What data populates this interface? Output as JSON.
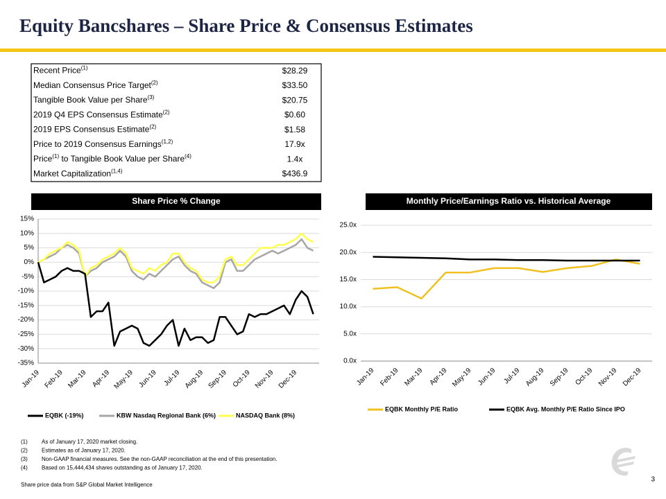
{
  "title": "Equity Bancshares – Share Price & Consensus Estimates",
  "table": {
    "rows": [
      {
        "label": [
          {
            "text": "Recent Price"
          },
          {
            "sup": "(1)"
          }
        ],
        "value": "$28.29"
      },
      {
        "label": [
          {
            "text": "Median Consensus  Price Target"
          },
          {
            "sup": "(2)"
          }
        ],
        "value": "$33.50"
      },
      {
        "label": [
          {
            "text": "Tangible Book Value per Share"
          },
          {
            "sup": "(3)"
          }
        ],
        "value": "$20.75"
      },
      {
        "label": [
          {
            "text": "2019 Q4 EPS Consensus  Estimate"
          },
          {
            "sup": "(2)"
          }
        ],
        "value": "$0.60"
      },
      {
        "label": [
          {
            "text": "2019 EPS Consensus  Estimate"
          },
          {
            "sup": "(2)"
          }
        ],
        "value": "$1.58"
      },
      {
        "label": [
          {
            "text": "Price to 2019 Consensus  Earnings"
          },
          {
            "sup": "(1,2)"
          }
        ],
        "value": "17.9x"
      },
      {
        "label": [
          {
            "text": "Price"
          },
          {
            "sup": "(1)"
          },
          {
            "text": " to Tangible Book Value per Share"
          },
          {
            "sup": "(4)"
          }
        ],
        "value": "1.4x"
      },
      {
        "label": [
          {
            "text": "Market Capitalization"
          },
          {
            "sup": "(1,4)"
          }
        ],
        "value": "$436.9"
      }
    ]
  },
  "chart_data": [
    {
      "type": "line",
      "title": "Share Price % Change",
      "categories": [
        "Jan-19",
        null,
        null,
        null,
        "Feb-19",
        null,
        null,
        null,
        "Mar-19",
        null,
        null,
        null,
        "Apr-19",
        null,
        null,
        null,
        "May-19",
        null,
        null,
        null,
        "Jun-19",
        null,
        null,
        null,
        "Jul-19",
        null,
        null,
        null,
        "Aug-19",
        null,
        null,
        null,
        "Sep-19",
        null,
        null,
        null,
        "Oct-19",
        null,
        null,
        null,
        "Nov-19",
        null,
        null,
        null,
        "Dec-19",
        null,
        null,
        null
      ],
      "series": [
        {
          "name": "EQBK (-19%)",
          "color": "#000000",
          "values": [
            0,
            -7,
            -6,
            -5,
            -3,
            -2,
            -3,
            -3,
            -4,
            -19,
            -17,
            -17,
            -14,
            -29,
            -24,
            -23,
            -22,
            -23,
            -28,
            -29,
            -27,
            -25,
            -22,
            -20,
            -29,
            -23,
            -27,
            -26,
            -26,
            -28,
            -27,
            -19,
            -19,
            -22,
            -25,
            -24,
            -18,
            -19,
            -18,
            -18,
            -17,
            -16,
            -15,
            -18,
            -13,
            -10,
            -12,
            -18
          ]
        },
        {
          "name": "KBW Nasdaq Regional Bank (6%)",
          "color": "#a6a6a6",
          "values": [
            0,
            1,
            2,
            3,
            5,
            6,
            5,
            3,
            -5,
            -3,
            -2,
            0,
            1,
            2,
            4,
            2,
            -3,
            -5,
            -6,
            -4,
            -5,
            -3,
            -1,
            1,
            2,
            -1,
            -3,
            -4,
            -7,
            -8,
            -9,
            -7,
            0,
            1,
            -3,
            -3,
            -1,
            1,
            2,
            3,
            4,
            3,
            4,
            5,
            6,
            8,
            5,
            4
          ]
        },
        {
          "name": "NASDAQ Bank (8%)",
          "color": "#ffff4d",
          "values": [
            0,
            1,
            3,
            4,
            5,
            7,
            6,
            4,
            -5,
            -2,
            -1,
            1,
            2,
            3,
            5,
            3,
            -2,
            -3,
            -4,
            -2,
            -3,
            -1,
            0,
            3,
            3,
            0,
            -2,
            -3,
            -6,
            -7,
            -7,
            -5,
            1,
            2,
            -1,
            -1,
            1,
            3,
            5,
            5,
            5,
            6,
            6,
            7,
            8,
            10,
            8,
            7
          ]
        }
      ],
      "ylim": [
        -35,
        15
      ],
      "yticks": [
        {
          "value": -35,
          "label": "-35%"
        },
        {
          "value": -30,
          "label": "-30%"
        },
        {
          "value": -25,
          "label": "-25%"
        },
        {
          "value": -20,
          "label": "-20%"
        },
        {
          "value": -15,
          "label": "-15%"
        },
        {
          "value": -10,
          "label": "-10%"
        },
        {
          "value": -5,
          "label": "-5%"
        },
        {
          "value": 0,
          "label": "0%"
        },
        {
          "value": 5,
          "label": "5%"
        },
        {
          "value": 10,
          "label": "10%"
        },
        {
          "value": 15,
          "label": "15%"
        }
      ],
      "grid": true
    },
    {
      "type": "line",
      "title": "Monthly Price/Earnings Ratio vs.  Historical Average",
      "categories": [
        "Jan-19",
        "Feb-19",
        "Mar-19",
        "Apr-19",
        "May-19",
        "Jun-19",
        "Jul-19",
        "Aug-19",
        "Sep-19",
        "Oct-19",
        "Nov-19",
        "Dec-19"
      ],
      "series": [
        {
          "name": "EQBK Monthly P/E Ratio",
          "color": "#f0c020",
          "values": [
            13.3,
            13.6,
            11.5,
            16.3,
            16.3,
            17.1,
            17.1,
            16.4,
            17.1,
            17.5,
            18.7,
            17.9
          ]
        },
        {
          "name": "EQBK Avg. Monthly P/E Ratio Since IPO",
          "color": "#000000",
          "values": [
            19.2,
            19.1,
            19.0,
            18.9,
            18.7,
            18.7,
            18.6,
            18.6,
            18.5,
            18.5,
            18.5,
            18.5
          ]
        }
      ],
      "ylim": [
        0,
        25
      ],
      "yticks": [
        {
          "value": 0,
          "label": "0.0x"
        },
        {
          "value": 5,
          "label": "5.0x"
        },
        {
          "value": 10,
          "label": "10.0x"
        },
        {
          "value": 15,
          "label": "15.0x"
        },
        {
          "value": 20,
          "label": "20.0x"
        },
        {
          "value": 25,
          "label": "25.0x"
        }
      ],
      "grid": true
    }
  ],
  "footnotes": [
    {
      "num": "(1)",
      "text": "As of January 17, 2020 market closing."
    },
    {
      "num": "(2)",
      "text": "Estimates as of January 17, 2020."
    },
    {
      "num": "(3)",
      "text": "Non-GAAP financial measures. See the non-GAAP reconciliation at the end of this presentation."
    },
    {
      "num": "(4)",
      "text": "Based on 15,444,434 shares outstanding as of January 17, 2020."
    }
  ],
  "source": "Share price data from S&P Global Market Intelligence",
  "page_number": "3"
}
